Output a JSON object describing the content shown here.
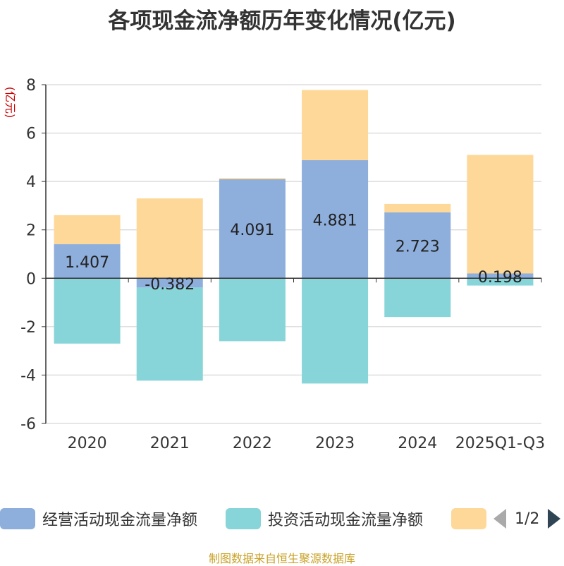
{
  "title": "各项现金流净额历年变化情况(亿元)",
  "source": "制图数据来自恒生聚源数据库",
  "colors": {
    "operating": "#8eaedc",
    "investing": "#87d5d8",
    "third": "#fed898",
    "axis": "#333333",
    "grid": "#cccccc",
    "ylabel": "#cc0000"
  },
  "legend": {
    "items": [
      {
        "label": "经营活动现金流量净额"
      },
      {
        "label": "投资活动现金流量净额"
      },
      {
        "label": ""
      }
    ],
    "pager": "1/2"
  },
  "chart_data": {
    "type": "bar",
    "stacked": true,
    "title": "各项现金流净额历年变化情况(亿元)",
    "ylabel": "(亿元)",
    "ylim": [
      -6,
      8
    ],
    "yticks": [
      -6,
      -4,
      -2,
      0,
      2,
      4,
      6,
      8
    ],
    "grid": true,
    "legend_position": "bottom",
    "categories": [
      "2020",
      "2021",
      "2022",
      "2023",
      "2024",
      "2025Q1-Q3"
    ],
    "series": [
      {
        "name": "经营活动现金流量净额",
        "values": [
          1.407,
          -0.382,
          4.091,
          4.881,
          2.723,
          0.198
        ],
        "labels": [
          "1.407",
          "-0.382",
          "4.091",
          "4.881",
          "2.723",
          "0.198"
        ]
      },
      {
        "name": "投资活动现金流量净额",
        "values": [
          -2.7,
          -3.85,
          -2.6,
          -4.35,
          -1.6,
          -0.3
        ]
      },
      {
        "name": "",
        "values": [
          1.2,
          3.3,
          0.05,
          2.9,
          0.35,
          4.9
        ]
      }
    ]
  }
}
